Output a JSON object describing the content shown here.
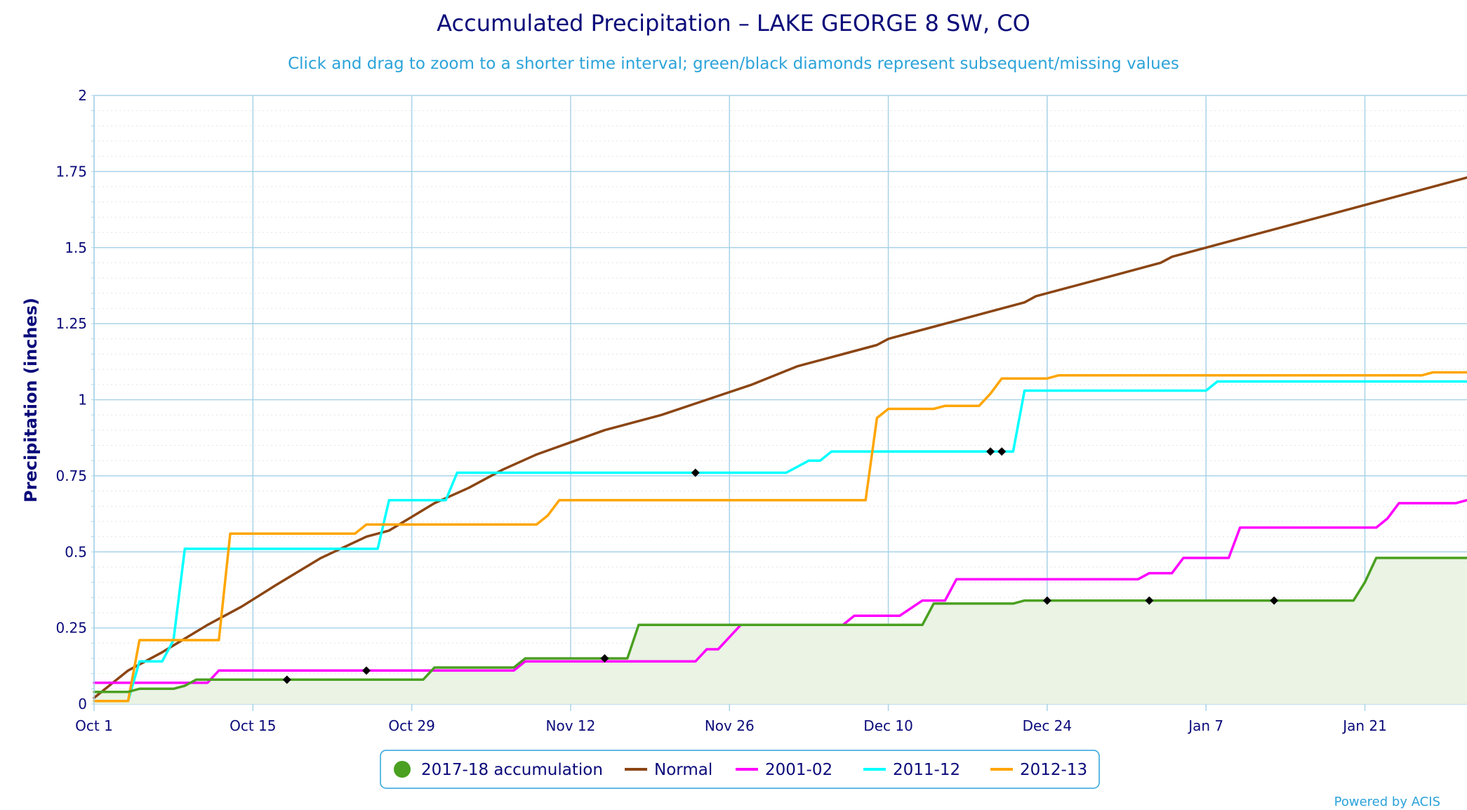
{
  "chart_data": {
    "type": "line",
    "title": "Accumulated Precipitation – LAKE GEORGE 8 SW, CO",
    "subtitle": "Click and drag to zoom to a shorter time interval; green/black diamonds represent subsequent/missing values",
    "ylabel": "Precipitation (inches)",
    "xlabel": "",
    "credit": "Powered by ACIS",
    "x_ticks": [
      {
        "label": "Oct 1",
        "day": 0
      },
      {
        "label": "Oct 15",
        "day": 14
      },
      {
        "label": "Oct 29",
        "day": 28
      },
      {
        "label": "Nov 12",
        "day": 42
      },
      {
        "label": "Nov 26",
        "day": 56
      },
      {
        "label": "Dec 10",
        "day": 70
      },
      {
        "label": "Dec 24",
        "day": 84
      },
      {
        "label": "Jan 7",
        "day": 98
      },
      {
        "label": "Jan 21",
        "day": 112
      }
    ],
    "y_ticks": [
      {
        "label": "0",
        "value": 0
      },
      {
        "label": "0.25",
        "value": 0.25
      },
      {
        "label": "0.5",
        "value": 0.5
      },
      {
        "label": "0.75",
        "value": 0.75
      },
      {
        "label": "1",
        "value": 1
      },
      {
        "label": "1.25",
        "value": 1.25
      },
      {
        "label": "1.5",
        "value": 1.5
      },
      {
        "label": "1.75",
        "value": 1.75
      },
      {
        "label": "2",
        "value": 2
      }
    ],
    "xlim": [
      0,
      121
    ],
    "ylim": [
      0,
      2
    ],
    "grid": true,
    "legend_position": "bottom-center",
    "series": [
      {
        "name": "2017-18 accumulation",
        "color": "#4aa021",
        "fill": "#eaf3e4",
        "legend_marker": "circle",
        "points": [
          [
            0,
            0.04
          ],
          [
            3,
            0.04
          ],
          [
            4,
            0.05
          ],
          [
            7,
            0.05
          ],
          [
            8,
            0.06
          ],
          [
            9,
            0.08
          ],
          [
            29,
            0.08
          ],
          [
            30,
            0.12
          ],
          [
            37,
            0.12
          ],
          [
            38,
            0.15
          ],
          [
            47,
            0.15
          ],
          [
            48,
            0.26
          ],
          [
            73,
            0.26
          ],
          [
            74,
            0.33
          ],
          [
            81,
            0.33
          ],
          [
            82,
            0.34
          ],
          [
            111,
            0.34
          ],
          [
            112,
            0.4
          ],
          [
            113,
            0.48
          ],
          [
            121,
            0.48
          ]
        ],
        "missing_markers": [
          [
            17,
            0.08
          ],
          [
            45,
            0.15
          ],
          [
            84,
            0.34
          ],
          [
            93,
            0.34
          ],
          [
            104,
            0.34
          ]
        ]
      },
      {
        "name": "Normal",
        "color": "#8b4513",
        "points": [
          [
            0,
            0.02
          ],
          [
            3,
            0.11
          ],
          [
            6,
            0.17
          ],
          [
            10,
            0.26
          ],
          [
            13,
            0.32
          ],
          [
            16,
            0.39
          ],
          [
            20,
            0.48
          ],
          [
            24,
            0.55
          ],
          [
            26,
            0.57
          ],
          [
            30,
            0.66
          ],
          [
            33,
            0.71
          ],
          [
            36,
            0.77
          ],
          [
            39,
            0.82
          ],
          [
            42,
            0.86
          ],
          [
            45,
            0.9
          ],
          [
            50,
            0.95
          ],
          [
            54,
            1.0
          ],
          [
            58,
            1.05
          ],
          [
            62,
            1.11
          ],
          [
            66,
            1.15
          ],
          [
            69,
            1.18
          ],
          [
            70,
            1.2
          ],
          [
            74,
            1.24
          ],
          [
            76,
            1.26
          ],
          [
            82,
            1.32
          ],
          [
            83,
            1.34
          ],
          [
            86,
            1.37
          ],
          [
            90,
            1.41
          ],
          [
            94,
            1.45
          ],
          [
            95,
            1.47
          ],
          [
            98,
            1.5
          ],
          [
            105,
            1.57
          ],
          [
            112,
            1.64
          ],
          [
            121,
            1.73
          ]
        ]
      },
      {
        "name": "2001-02",
        "color": "#ff00ff",
        "points": [
          [
            0,
            0.07
          ],
          [
            10,
            0.07
          ],
          [
            11,
            0.11
          ],
          [
            37,
            0.11
          ],
          [
            38,
            0.14
          ],
          [
            53,
            0.14
          ],
          [
            54,
            0.18
          ],
          [
            55,
            0.18
          ],
          [
            57,
            0.26
          ],
          [
            66,
            0.26
          ],
          [
            67,
            0.29
          ],
          [
            71,
            0.29
          ],
          [
            73,
            0.34
          ],
          [
            75,
            0.34
          ],
          [
            76,
            0.41
          ],
          [
            92,
            0.41
          ],
          [
            93,
            0.43
          ],
          [
            95,
            0.43
          ],
          [
            96,
            0.48
          ],
          [
            100,
            0.48
          ],
          [
            101,
            0.58
          ],
          [
            113,
            0.58
          ],
          [
            114,
            0.61
          ],
          [
            115,
            0.66
          ],
          [
            120,
            0.66
          ],
          [
            121,
            0.67
          ]
        ],
        "missing_markers": [
          [
            24,
            0.11
          ]
        ]
      },
      {
        "name": "2011-12",
        "color": "#00ffff",
        "points": [
          [
            0,
            0.01
          ],
          [
            3,
            0.01
          ],
          [
            4,
            0.14
          ],
          [
            6,
            0.14
          ],
          [
            7,
            0.21
          ],
          [
            8,
            0.51
          ],
          [
            25,
            0.51
          ],
          [
            26,
            0.67
          ],
          [
            31,
            0.67
          ],
          [
            32,
            0.76
          ],
          [
            61,
            0.76
          ],
          [
            63,
            0.8
          ],
          [
            64,
            0.8
          ],
          [
            65,
            0.83
          ],
          [
            81,
            0.83
          ],
          [
            82,
            1.03
          ],
          [
            98,
            1.03
          ],
          [
            99,
            1.06
          ],
          [
            121,
            1.06
          ]
        ],
        "missing_markers": [
          [
            53,
            0.76
          ],
          [
            79,
            0.83
          ],
          [
            80,
            0.83
          ]
        ]
      },
      {
        "name": "2012-13",
        "color": "#ffa500",
        "points": [
          [
            0,
            0.01
          ],
          [
            3,
            0.01
          ],
          [
            4,
            0.21
          ],
          [
            11,
            0.21
          ],
          [
            12,
            0.56
          ],
          [
            23,
            0.56
          ],
          [
            24,
            0.59
          ],
          [
            39,
            0.59
          ],
          [
            40,
            0.62
          ],
          [
            41,
            0.67
          ],
          [
            68,
            0.67
          ],
          [
            69,
            0.94
          ],
          [
            70,
            0.97
          ],
          [
            74,
            0.97
          ],
          [
            75,
            0.98
          ],
          [
            78,
            0.98
          ],
          [
            79,
            1.02
          ],
          [
            80,
            1.07
          ],
          [
            84,
            1.07
          ],
          [
            85,
            1.08
          ],
          [
            117,
            1.08
          ],
          [
            118,
            1.09
          ],
          [
            121,
            1.09
          ]
        ]
      }
    ]
  }
}
